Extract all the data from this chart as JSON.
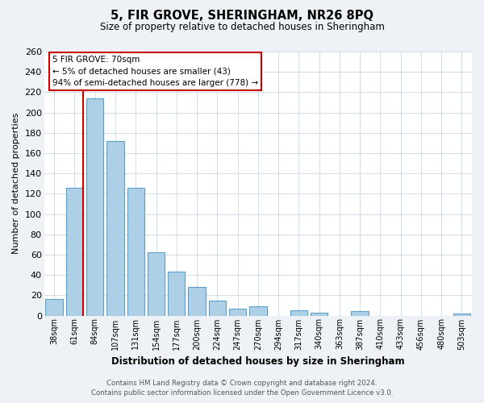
{
  "title": "5, FIR GROVE, SHERINGHAM, NR26 8PQ",
  "subtitle": "Size of property relative to detached houses in Sheringham",
  "xlabel": "Distribution of detached houses by size in Sheringham",
  "ylabel": "Number of detached properties",
  "categories": [
    "38sqm",
    "61sqm",
    "84sqm",
    "107sqm",
    "131sqm",
    "154sqm",
    "177sqm",
    "200sqm",
    "224sqm",
    "247sqm",
    "270sqm",
    "294sqm",
    "317sqm",
    "340sqm",
    "363sqm",
    "387sqm",
    "410sqm",
    "433sqm",
    "456sqm",
    "480sqm",
    "503sqm"
  ],
  "values": [
    16,
    126,
    214,
    172,
    126,
    62,
    43,
    28,
    15,
    7,
    9,
    0,
    5,
    3,
    0,
    4,
    0,
    0,
    0,
    0,
    2
  ],
  "bar_color": "#aed0e6",
  "bar_edge_color": "#5b9ec9",
  "highlight_line_color": "#cc0000",
  "annotation_text_line1": "5 FIR GROVE: 70sqm",
  "annotation_text_line2": "← 5% of detached houses are smaller (43)",
  "annotation_text_line3": "94% of semi-detached houses are larger (778) →",
  "annotation_box_color": "#ffffff",
  "annotation_box_edge_color": "#cc0000",
  "ylim": [
    0,
    260
  ],
  "yticks": [
    0,
    20,
    40,
    60,
    80,
    100,
    120,
    140,
    160,
    180,
    200,
    220,
    240,
    260
  ],
  "footer_line1": "Contains HM Land Registry data © Crown copyright and database right 2024.",
  "footer_line2": "Contains public sector information licensed under the Open Government Licence v3.0.",
  "bg_color": "#eef2f7",
  "plot_bg_color": "#ffffff"
}
